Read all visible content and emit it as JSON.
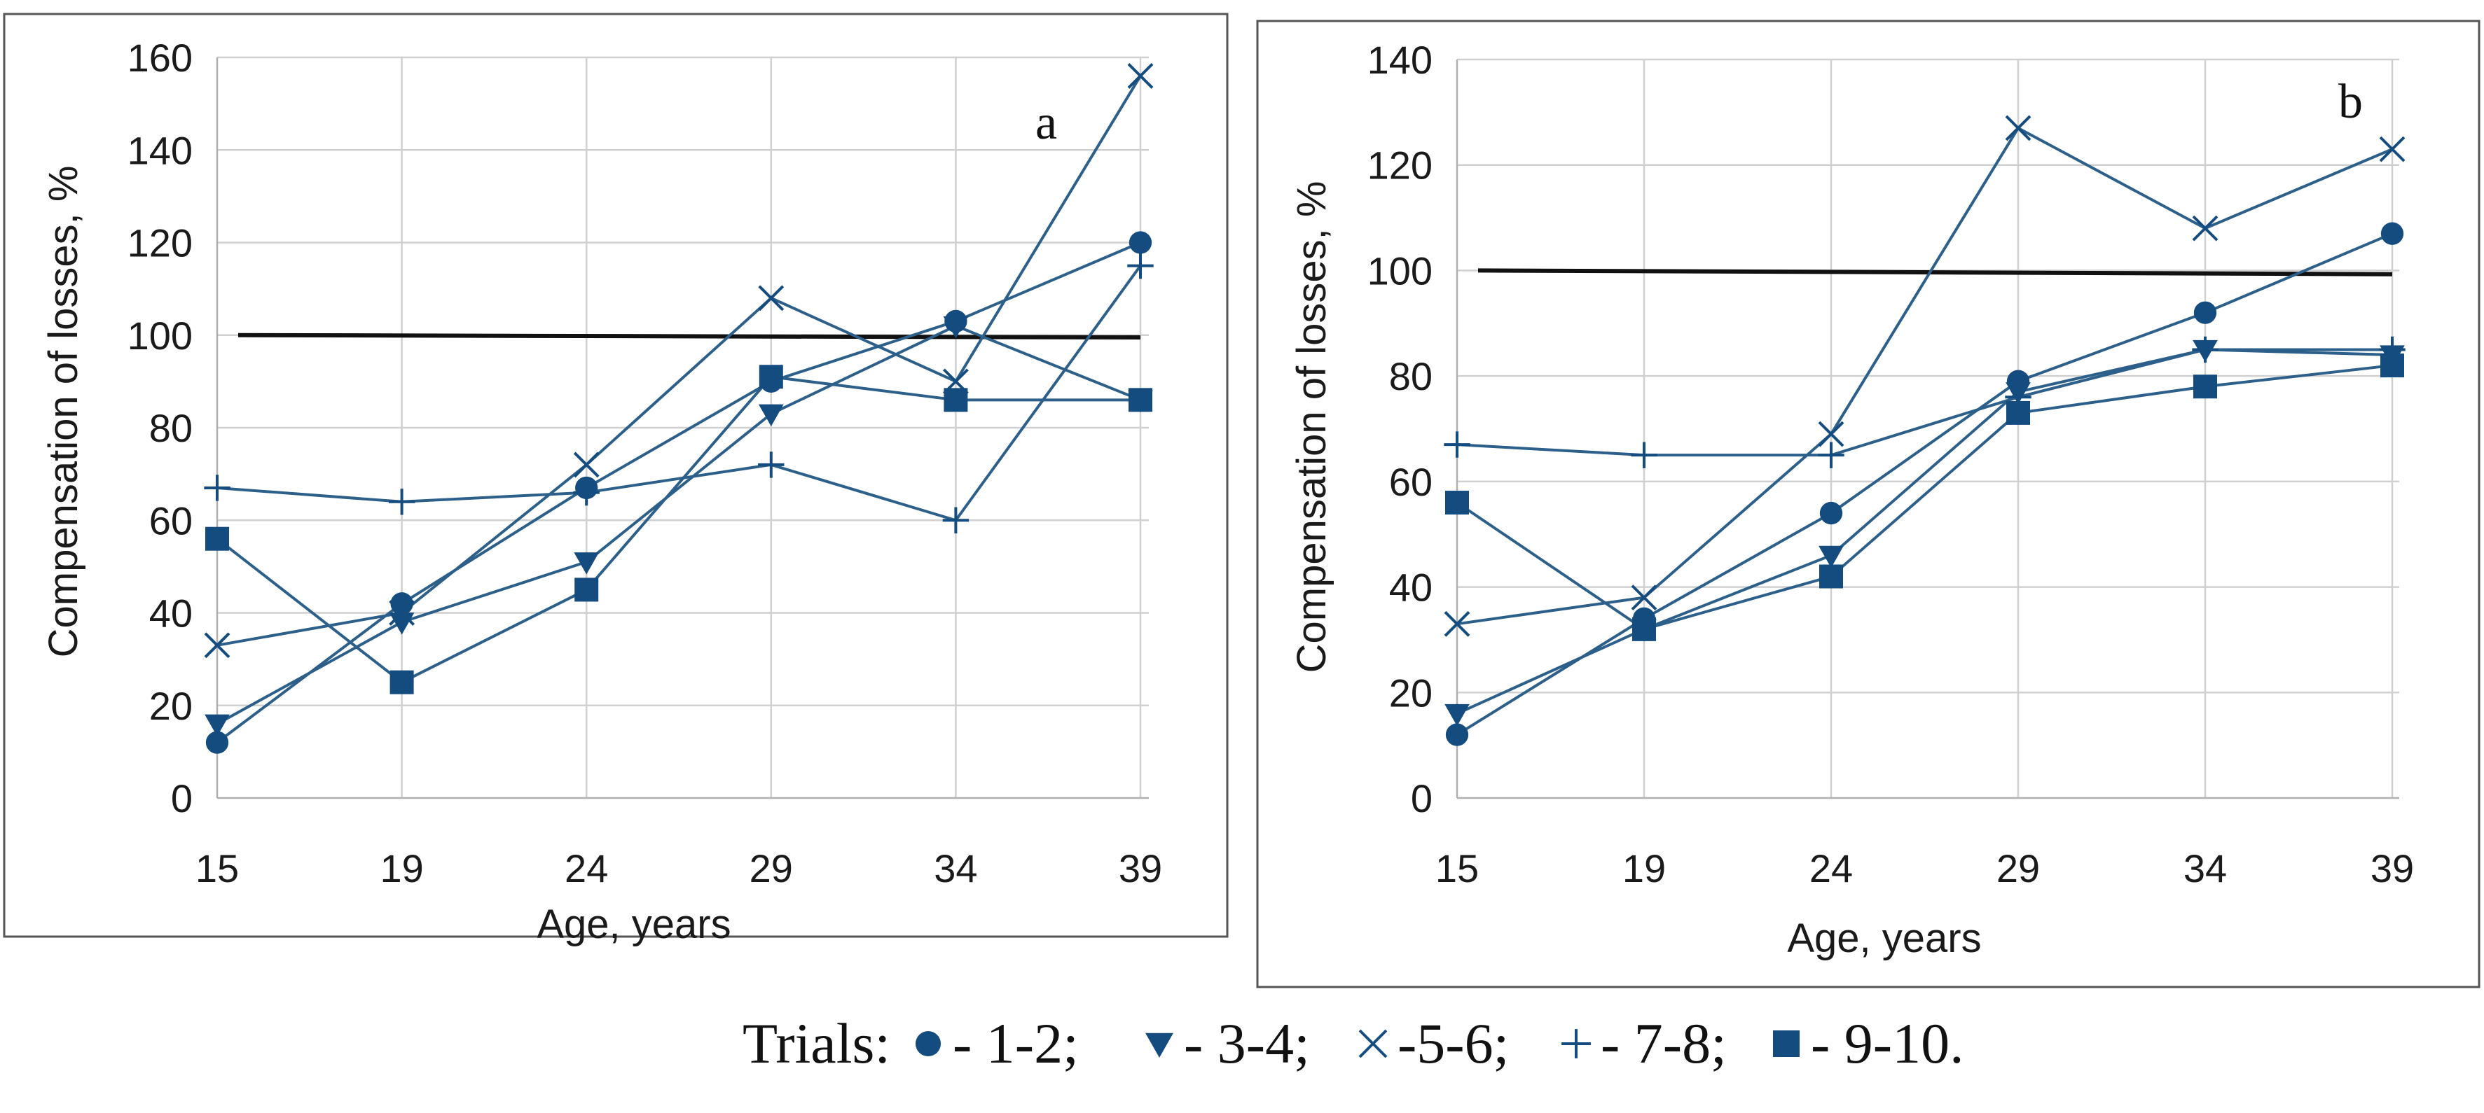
{
  "chart_data": [
    {
      "type": "line",
      "panel_label": "a",
      "xlabel": "Age, years",
      "ylabel": "Compensation of losses, %",
      "categories": [
        "15",
        "19",
        "24",
        "29",
        "34",
        "39"
      ],
      "ylim": [
        0,
        160
      ],
      "yticks": [
        0,
        20,
        40,
        60,
        80,
        100,
        120,
        140,
        160
      ],
      "reference_line": {
        "y_start": 100,
        "y_end": 99.5
      },
      "series": [
        {
          "name": "1-2",
          "marker": "circle",
          "values": [
            12,
            42,
            67,
            90,
            103,
            120
          ]
        },
        {
          "name": "3-4",
          "marker": "triangle-down",
          "values": [
            16,
            38,
            51,
            83,
            102,
            86
          ]
        },
        {
          "name": "5-6",
          "marker": "x",
          "values": [
            33,
            40,
            72,
            108,
            90,
            156
          ]
        },
        {
          "name": "7-8",
          "marker": "plus",
          "values": [
            67,
            64,
            66,
            72,
            60,
            115
          ]
        },
        {
          "name": "9-10",
          "marker": "square",
          "values": [
            56,
            25,
            45,
            91,
            86,
            86
          ]
        }
      ]
    },
    {
      "type": "line",
      "panel_label": "b",
      "xlabel": "Age, years",
      "ylabel": "Compensation of losses, %",
      "categories": [
        "15",
        "19",
        "24",
        "29",
        "34",
        "39"
      ],
      "ylim": [
        0,
        140
      ],
      "yticks": [
        0,
        20,
        40,
        60,
        80,
        100,
        120,
        140
      ],
      "reference_line": {
        "y_start": 100,
        "y_end": 99.3
      },
      "series": [
        {
          "name": "1-2",
          "marker": "circle",
          "values": [
            12,
            34,
            54,
            79,
            92,
            107
          ]
        },
        {
          "name": "3-4",
          "marker": "triangle-down",
          "values": [
            16,
            32,
            46,
            77,
            85,
            84
          ]
        },
        {
          "name": "5-6",
          "marker": "x",
          "values": [
            33,
            38,
            69,
            127,
            108,
            123
          ]
        },
        {
          "name": "7-8",
          "marker": "plus",
          "values": [
            67,
            65,
            65,
            76,
            85,
            85
          ]
        },
        {
          "name": "9-10",
          "marker": "square",
          "values": [
            56,
            32,
            42,
            73,
            78,
            82
          ]
        }
      ]
    }
  ],
  "legend": {
    "prefix": "Trials:",
    "items": [
      {
        "marker": "circle",
        "label": "- 1-2;"
      },
      {
        "marker": "triangle-down",
        "label": "- 3-4;"
      },
      {
        "marker": "x",
        "label": "-5-6;"
      },
      {
        "marker": "plus",
        "label": "- 7-8;"
      },
      {
        "marker": "square",
        "label": "- 9-10."
      }
    ]
  },
  "colors": {
    "series": "#2c5f8a",
    "marker": "#154c80",
    "reference": "#111111",
    "grid": "#d0d0d0"
  }
}
